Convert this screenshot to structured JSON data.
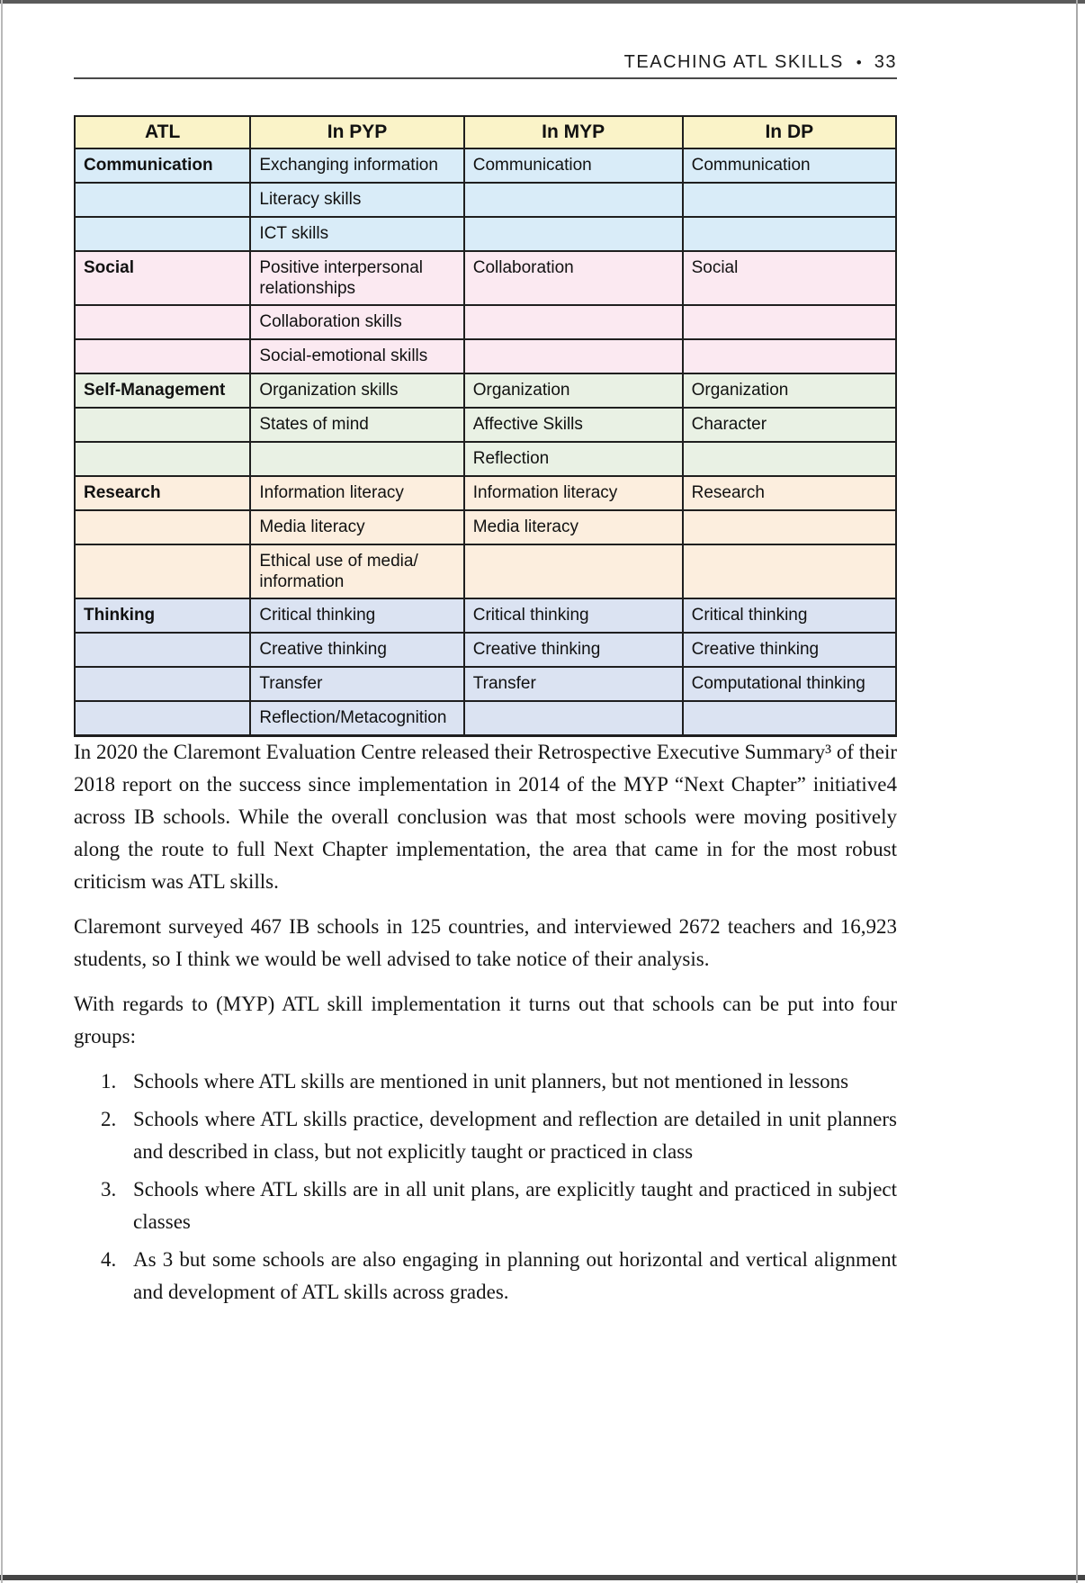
{
  "header": {
    "title": "TEACHING ATL SKILLS",
    "bullet": "•",
    "page_number": "33"
  },
  "table": {
    "columns": [
      "ATL",
      "In PYP",
      "In MYP",
      "In DP"
    ],
    "header_bg": "#FAF3C8",
    "border_color": "#1F1F1F",
    "section_colors": {
      "communication": "#D9ECF8",
      "social": "#FBE9F1",
      "self_management": "#E9F1E4",
      "research": "#FCEEDE",
      "thinking": "#DBE3F2"
    },
    "rows": [
      {
        "section": "communication",
        "bg": "#D9ECF8",
        "cells": [
          "Communication",
          "Exchanging information",
          "Communication",
          "Communication"
        ]
      },
      {
        "section": "communication",
        "bg": "#D9ECF8",
        "cells": [
          "",
          "Literacy skills",
          "",
          ""
        ]
      },
      {
        "section": "communication",
        "bg": "#D9ECF8",
        "cells": [
          "",
          "ICT skills",
          "",
          ""
        ]
      },
      {
        "section": "social",
        "bg": "#FBE9F1",
        "cells": [
          "Social",
          "Positive interpersonal relationships",
          "Collaboration",
          "Social"
        ]
      },
      {
        "section": "social",
        "bg": "#FBE9F1",
        "cells": [
          "",
          "Collaboration skills",
          "",
          ""
        ]
      },
      {
        "section": "social",
        "bg": "#FBE9F1",
        "cells": [
          "",
          "Social-emotional skills",
          "",
          ""
        ]
      },
      {
        "section": "self_management",
        "bg": "#E9F1E4",
        "cells": [
          "Self-Management",
          "Organization skills",
          "Organization",
          "Organization"
        ]
      },
      {
        "section": "self_management",
        "bg": "#E9F1E4",
        "cells": [
          "",
          "States of mind",
          "Affective Skills",
          "Character"
        ]
      },
      {
        "section": "self_management",
        "bg": "#E9F1E4",
        "cells": [
          "",
          "",
          "Reflection",
          ""
        ]
      },
      {
        "section": "research",
        "bg": "#FCEEDE",
        "cells": [
          "Research",
          "Information literacy",
          "Information literacy",
          "Research"
        ]
      },
      {
        "section": "research",
        "bg": "#FCEEDE",
        "cells": [
          "",
          "Media literacy",
          "Media literacy",
          ""
        ]
      },
      {
        "section": "research",
        "bg": "#FCEEDE",
        "cells": [
          "",
          "Ethical use of media/ information",
          "",
          ""
        ]
      },
      {
        "section": "thinking",
        "bg": "#DBE3F2",
        "cells": [
          "Thinking",
          "Critical thinking",
          "Critical thinking",
          "Critical thinking"
        ]
      },
      {
        "section": "thinking",
        "bg": "#DBE3F2",
        "cells": [
          "",
          "Creative thinking",
          "Creative thinking",
          "Creative thinking"
        ]
      },
      {
        "section": "thinking",
        "bg": "#DBE3F2",
        "cells": [
          "",
          "Transfer",
          "Transfer",
          "Computational thinking"
        ]
      },
      {
        "section": "thinking",
        "bg": "#DBE3F2",
        "cells": [
          "",
          "Reflection/Metacognition",
          "",
          ""
        ]
      }
    ]
  },
  "body": {
    "paragraphs": [
      "In 2020 the Claremont Evaluation Centre released their Retrospective Executive Summary³ of their 2018 report on the success since implementation in 2014 of the MYP “Next Chapter” initiative4 across IB schools. While the overall conclusion was that most schools were moving positively along the route to full Next Chapter implementation, the area that came in for the most robust criticism was ATL skills.",
      "Claremont surveyed 467 IB schools in 125 countries, and interviewed 2672 teachers and 16,923 students, so I think we would be well advised to take notice of their analysis.",
      "With regards to (MYP) ATL skill implementation it turns out that schools can be put into four groups:"
    ],
    "list": [
      {
        "number": "1.",
        "text": "Schools where ATL skills are mentioned in unit planners, but not mentioned in lessons"
      },
      {
        "number": "2.",
        "text": "Schools where ATL skills practice, development and reflection are detailed in unit planners and described in class, but not explicitly taught or practiced in class"
      },
      {
        "number": "3.",
        "text": "Schools where ATL skills are in all unit plans, are explicitly taught and practiced in subject classes"
      },
      {
        "number": "4.",
        "text": "As 3 but some schools are also engaging in planning out horizontal and vertical alignment and development of ATL skills across grades."
      }
    ]
  }
}
